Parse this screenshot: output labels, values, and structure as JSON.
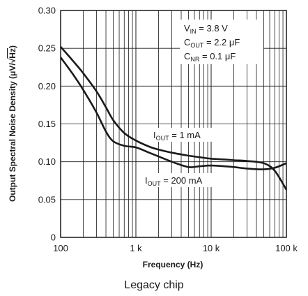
{
  "chart_data": {
    "type": "line",
    "xscale": "log",
    "xlim": [
      100,
      100000
    ],
    "ylim": [
      0,
      0.3
    ],
    "grid": true,
    "x_ticks": [
      100,
      1000,
      10000,
      100000
    ],
    "x_tick_labels": [
      "100",
      "1 k",
      "10 k",
      "100 k"
    ],
    "y_ticks": [
      0,
      0.05,
      0.1,
      0.15,
      0.2,
      0.25,
      0.3
    ],
    "y_tick_labels": [
      "0",
      "0.05",
      "0.10",
      "0.15",
      "0.20",
      "0.25",
      "0.30"
    ],
    "xlabel": "Frequency (Hz)",
    "ylabel_main": "Output Spectral Noise Density (",
    "ylabel_unit_mu": "μV/√",
    "ylabel_unit_hz": "Hz",
    "ylabel_close": ")",
    "series": [
      {
        "label_main": "I",
        "label_sub": "OUT",
        "label_rest": " = 1 mA",
        "x": [
          100,
          150,
          200,
          300,
          400,
          500,
          700,
          1000,
          1500,
          2000,
          3000,
          5000,
          7000,
          10000,
          15000,
          20000,
          30000,
          50000,
          70000,
          100000
        ],
        "y": [
          0.252,
          0.232,
          0.217,
          0.193,
          0.172,
          0.155,
          0.138,
          0.128,
          0.12,
          0.116,
          0.112,
          0.108,
          0.106,
          0.104,
          0.103,
          0.102,
          0.101,
          0.098,
          0.088,
          0.063
        ]
      },
      {
        "label_main": "I",
        "label_sub": "OUT",
        "label_rest": " = 200 mA",
        "x": [
          100,
          150,
          200,
          300,
          400,
          500,
          700,
          1000,
          1500,
          2000,
          3000,
          5000,
          7000,
          10000,
          15000,
          20000,
          30000,
          50000,
          70000,
          100000
        ],
        "y": [
          0.238,
          0.214,
          0.195,
          0.165,
          0.14,
          0.127,
          0.121,
          0.119,
          0.112,
          0.107,
          0.1,
          0.093,
          0.094,
          0.095,
          0.094,
          0.093,
          0.091,
          0.09,
          0.092,
          0.098
        ]
      }
    ],
    "annotations": [
      {
        "main": "V",
        "sub": "IN",
        "rest": " = 3.8 V"
      },
      {
        "main": "C",
        "sub": "OUT",
        "rest": " = 2.2 μF"
      },
      {
        "main": "C",
        "sub": "NR",
        "rest": " = 0.1 μF"
      }
    ],
    "caption": "Legacy chip"
  }
}
